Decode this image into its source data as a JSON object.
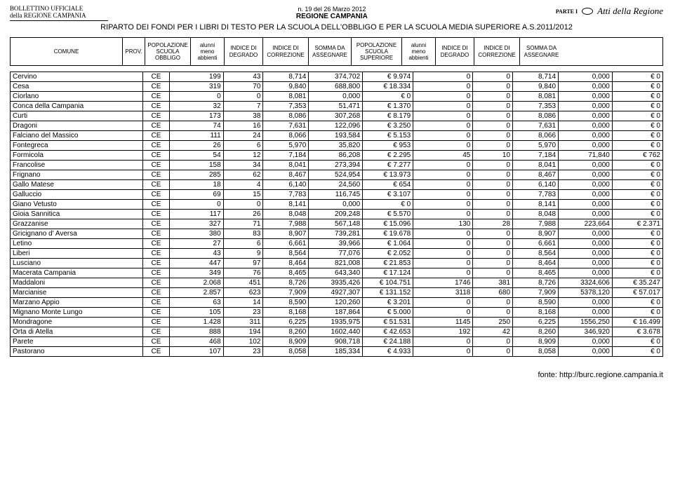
{
  "header": {
    "bollettino_l1": "BOLLETTINO UFFICIALE",
    "bollettino_l2": "della REGIONE CAMPANIA",
    "issue": "n. 19 del 26 Marzo 2012",
    "region": "REGIONE CAMPANIA",
    "parte": "PARTE I",
    "atti": "Atti della Regione",
    "title": "RIPARTO DEI FONDI PER I LIBRI DI TESTO PER LA SCUOLA DELL'OBBLIGO E PER LA SCUOLA MEDIA SUPERIORE A.S.2011/2012"
  },
  "columns": [
    "COMUNE",
    "PROV.",
    "POPOLAZIONE SCUOLA OBBLIGO",
    "alunni meno abbienti",
    "INDICE DI DEGRADO",
    "INDICE DI CORREZIONE",
    "SOMMA DA ASSEGNARE",
    "POPOLAZIONE SCUOLA SUPERIORE",
    "alunni meno abbienti",
    "INDICE DI DEGRADO",
    "INDICE DI CORREZIONE",
    "SOMMA DA ASSEGNARE"
  ],
  "rows": [
    [
      "Cervino",
      "CE",
      "199",
      "43",
      "8,714",
      "374,702",
      "€ 9.974",
      "0",
      "0",
      "8,714",
      "0,000",
      "€ 0"
    ],
    [
      "Cesa",
      "CE",
      "319",
      "70",
      "9,840",
      "688,800",
      "€ 18.334",
      "0",
      "0",
      "9,840",
      "0,000",
      "€ 0"
    ],
    [
      "Ciorlano",
      "CE",
      "0",
      "0",
      "8,081",
      "0,000",
      "€ 0",
      "0",
      "0",
      "8,081",
      "0,000",
      "€ 0"
    ],
    [
      "Conca della Campania",
      "CE",
      "32",
      "7",
      "7,353",
      "51,471",
      "€ 1.370",
      "0",
      "0",
      "7,353",
      "0,000",
      "€ 0"
    ],
    [
      "Curti",
      "CE",
      "173",
      "38",
      "8,086",
      "307,268",
      "€ 8.179",
      "0",
      "0",
      "8,086",
      "0,000",
      "€ 0"
    ],
    [
      "Dragoni",
      "CE",
      "74",
      "16",
      "7,631",
      "122,096",
      "€ 3.250",
      "0",
      "0",
      "7,631",
      "0,000",
      "€ 0"
    ],
    [
      "Falciano del Massico",
      "CE",
      "111",
      "24",
      "8,066",
      "193,584",
      "€ 5.153",
      "0",
      "0",
      "8,066",
      "0,000",
      "€ 0"
    ],
    [
      "Fontegreca",
      "CE",
      "26",
      "6",
      "5,970",
      "35,820",
      "€ 953",
      "0",
      "0",
      "5,970",
      "0,000",
      "€ 0"
    ],
    [
      "Formicola",
      "CE",
      "54",
      "12",
      "7,184",
      "86,208",
      "€ 2.295",
      "45",
      "10",
      "7,184",
      "71,840",
      "€ 762"
    ],
    [
      "Francolise",
      "CE",
      "158",
      "34",
      "8,041",
      "273,394",
      "€ 7.277",
      "0",
      "0",
      "8,041",
      "0,000",
      "€ 0"
    ],
    [
      "Frignano",
      "CE",
      "285",
      "62",
      "8,467",
      "524,954",
      "€ 13.973",
      "0",
      "0",
      "8,467",
      "0,000",
      "€ 0"
    ],
    [
      "Gallo Matese",
      "CE",
      "18",
      "4",
      "6,140",
      "24,560",
      "€ 654",
      "0",
      "0",
      "6,140",
      "0,000",
      "€ 0"
    ],
    [
      "Galluccio",
      "CE",
      "69",
      "15",
      "7,783",
      "116,745",
      "€ 3.107",
      "0",
      "0",
      "7,783",
      "0,000",
      "€ 0"
    ],
    [
      "Giano Vetusto",
      "CE",
      "0",
      "0",
      "8,141",
      "0,000",
      "€ 0",
      "0",
      "0",
      "8,141",
      "0,000",
      "€ 0"
    ],
    [
      "Gioia Sannitica",
      "CE",
      "117",
      "26",
      "8,048",
      "209,248",
      "€ 5.570",
      "0",
      "0",
      "8,048",
      "0,000",
      "€ 0"
    ],
    [
      "Grazzanise",
      "CE",
      "327",
      "71",
      "7,988",
      "567,148",
      "€ 15.096",
      "130",
      "28",
      "7,988",
      "223,664",
      "€ 2.371"
    ],
    [
      "Gricignano d' Aversa",
      "CE",
      "380",
      "83",
      "8,907",
      "739,281",
      "€ 19.678",
      "0",
      "0",
      "8,907",
      "0,000",
      "€ 0"
    ],
    [
      "Letino",
      "CE",
      "27",
      "6",
      "6,661",
      "39,966",
      "€ 1.064",
      "0",
      "0",
      "6,661",
      "0,000",
      "€ 0"
    ],
    [
      "Liberi",
      "CE",
      "43",
      "9",
      "8,564",
      "77,076",
      "€ 2.052",
      "0",
      "0",
      "8,564",
      "0,000",
      "€ 0"
    ],
    [
      "Lusciano",
      "CE",
      "447",
      "97",
      "8,464",
      "821,008",
      "€ 21.853",
      "0",
      "0",
      "8,464",
      "0,000",
      "€ 0"
    ],
    [
      "Macerata Campania",
      "CE",
      "349",
      "76",
      "8,465",
      "643,340",
      "€ 17.124",
      "0",
      "0",
      "8,465",
      "0,000",
      "€ 0"
    ],
    [
      "Maddaloni",
      "CE",
      "2.068",
      "451",
      "8,726",
      "3935,426",
      "€ 104.751",
      "1746",
      "381",
      "8,726",
      "3324,606",
      "€ 35.247"
    ],
    [
      "Marcianise",
      "CE",
      "2.857",
      "623",
      "7,909",
      "4927,307",
      "€ 131.152",
      "3118",
      "680",
      "7,909",
      "5378,120",
      "€ 57.017"
    ],
    [
      "Marzano Appio",
      "CE",
      "63",
      "14",
      "8,590",
      "120,260",
      "€ 3.201",
      "0",
      "0",
      "8,590",
      "0,000",
      "€ 0"
    ],
    [
      "Mignano Monte Lungo",
      "CE",
      "105",
      "23",
      "8,168",
      "187,864",
      "€ 5.000",
      "0",
      "0",
      "8,168",
      "0,000",
      "€ 0"
    ],
    [
      "Mondragone",
      "CE",
      "1.428",
      "311",
      "6,225",
      "1935,975",
      "€ 51.531",
      "1145",
      "250",
      "6,225",
      "1556,250",
      "€ 16.499"
    ],
    [
      "Orta di Atella",
      "CE",
      "888",
      "194",
      "8,260",
      "1602,440",
      "€ 42.653",
      "192",
      "42",
      "8,260",
      "346,920",
      "€ 3.678"
    ],
    [
      "Parete",
      "CE",
      "468",
      "102",
      "8,909",
      "908,718",
      "€ 24.188",
      "0",
      "0",
      "8,909",
      "0,000",
      "€ 0"
    ],
    [
      "Pastorano",
      "CE",
      "107",
      "23",
      "8,058",
      "185,334",
      "€ 4.933",
      "0",
      "0",
      "8,058",
      "0,000",
      "€ 0"
    ]
  ],
  "footer": "fonte: http://burc.regione.campania.it"
}
